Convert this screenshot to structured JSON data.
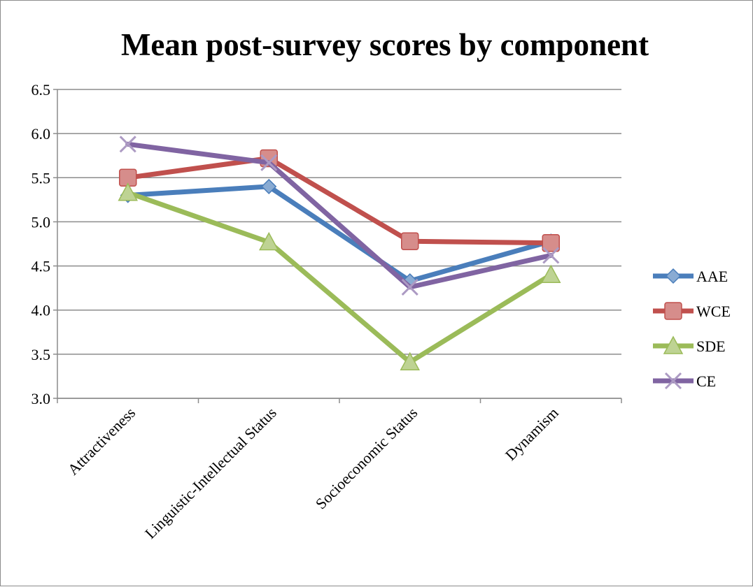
{
  "chart_data": {
    "type": "line",
    "title": "Mean post-survey scores by component",
    "xlabel": "",
    "ylabel": "",
    "categories": [
      "Attractiveness",
      "Linguistic-Intellectual Status",
      "Socioeconomic Status",
      "Dynamism"
    ],
    "ylim": [
      3.0,
      6.5
    ],
    "yticks": [
      "3.0",
      "3.5",
      "4.0",
      "4.5",
      "5.0",
      "5.5",
      "6.0",
      "6.5"
    ],
    "grid": true,
    "legend_position": "right",
    "series": [
      {
        "name": "AAE",
        "values": [
          5.3,
          5.4,
          4.33,
          4.78
        ],
        "color": "#4a7ebb",
        "marker": "diamond"
      },
      {
        "name": "WCE",
        "values": [
          5.5,
          5.72,
          4.78,
          4.76
        ],
        "color": "#c0504d",
        "marker": "square"
      },
      {
        "name": "SDE",
        "values": [
          5.33,
          4.77,
          3.41,
          4.4
        ],
        "color": "#9bbb59",
        "marker": "triangle"
      },
      {
        "name": "CE",
        "values": [
          5.88,
          5.67,
          4.26,
          4.62
        ],
        "color": "#8064a2",
        "marker": "x"
      }
    ]
  }
}
